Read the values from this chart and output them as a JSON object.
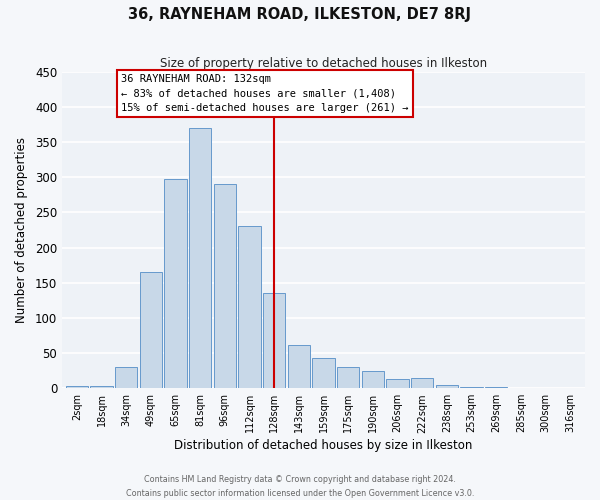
{
  "title": "36, RAYNEHAM ROAD, ILKESTON, DE7 8RJ",
  "subtitle": "Size of property relative to detached houses in Ilkeston",
  "xlabel": "Distribution of detached houses by size in Ilkeston",
  "ylabel": "Number of detached properties",
  "bar_color": "#c8d8e8",
  "bar_edge_color": "#6699cc",
  "bg_color": "#eef2f7",
  "grid_color": "#ffffff",
  "fig_color": "#f5f7fa",
  "categories": [
    "2sqm",
    "18sqm",
    "34sqm",
    "49sqm",
    "65sqm",
    "81sqm",
    "96sqm",
    "112sqm",
    "128sqm",
    "143sqm",
    "159sqm",
    "175sqm",
    "190sqm",
    "206sqm",
    "222sqm",
    "238sqm",
    "253sqm",
    "269sqm",
    "285sqm",
    "300sqm",
    "316sqm"
  ],
  "values": [
    3,
    3,
    30,
    165,
    297,
    370,
    291,
    230,
    135,
    62,
    43,
    30,
    25,
    13,
    15,
    5,
    2,
    2,
    0,
    0,
    0
  ],
  "vline_x": 8,
  "vline_color": "#cc0000",
  "annotation_title": "36 RAYNEHAM ROAD: 132sqm",
  "annotation_line1": "← 83% of detached houses are smaller (1,408)",
  "annotation_line2": "15% of semi-detached houses are larger (261) →",
  "annotation_box_color": "#ffffff",
  "annotation_border_color": "#cc0000",
  "ylim": [
    0,
    450
  ],
  "yticks": [
    0,
    50,
    100,
    150,
    200,
    250,
    300,
    350,
    400,
    450
  ],
  "footer1": "Contains HM Land Registry data © Crown copyright and database right 2024.",
  "footer2": "Contains public sector information licensed under the Open Government Licence v3.0."
}
